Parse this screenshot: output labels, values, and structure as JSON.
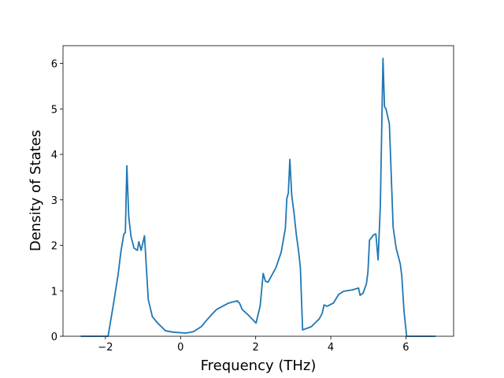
{
  "chart_data": {
    "type": "line",
    "xlabel": "Frequency (THz)",
    "ylabel": "Density of States",
    "color": "#1f77b4",
    "x": [
      -2.66,
      -1.93,
      -1.8,
      -1.66,
      -1.59,
      -1.51,
      -1.47,
      -1.43,
      -1.38,
      -1.32,
      -1.24,
      -1.15,
      -1.11,
      -1.05,
      -0.96,
      -0.86,
      -0.75,
      -0.61,
      -0.4,
      -0.19,
      0.13,
      0.34,
      0.55,
      0.69,
      0.82,
      0.96,
      1.28,
      1.51,
      1.57,
      1.64,
      1.8,
      2.01,
      2.12,
      2.2,
      2.26,
      2.33,
      2.54,
      2.68,
      2.79,
      2.83,
      2.87,
      2.91,
      2.96,
      3.02,
      3.08,
      3.14,
      3.19,
      3.25,
      3.48,
      3.69,
      3.77,
      3.82,
      3.9,
      4.07,
      4.21,
      4.34,
      4.57,
      4.74,
      4.78,
      4.86,
      4.95,
      4.99,
      5.03,
      5.14,
      5.2,
      5.26,
      5.32,
      5.39,
      5.43,
      5.47,
      5.56,
      5.66,
      5.74,
      5.85,
      5.89,
      5.95,
      6.02,
      6.79
    ],
    "values": [
      0,
      0,
      0.64,
      1.37,
      1.85,
      2.25,
      2.28,
      3.75,
      2.63,
      2.2,
      1.94,
      1.89,
      2.08,
      1.89,
      2.21,
      0.81,
      0.43,
      0.29,
      0.12,
      0.09,
      0.07,
      0.1,
      0.21,
      0.35,
      0.47,
      0.59,
      0.73,
      0.78,
      0.73,
      0.59,
      0.47,
      0.29,
      0.67,
      1.38,
      1.21,
      1.19,
      1.51,
      1.85,
      2.37,
      3.03,
      3.15,
      3.89,
      3.1,
      2.72,
      2.25,
      1.89,
      1.51,
      0.14,
      0.21,
      0.38,
      0.5,
      0.69,
      0.66,
      0.73,
      0.92,
      0.99,
      1.02,
      1.06,
      0.9,
      0.95,
      1.16,
      1.42,
      2.11,
      2.23,
      2.25,
      1.68,
      2.89,
      6.11,
      5.05,
      5.0,
      4.67,
      2.4,
      1.94,
      1.59,
      1.33,
      0.55,
      0,
      0
    ],
    "xlim": [
      -3.13,
      7.27
    ],
    "ylim": [
      0,
      6.39
    ],
    "xticks": [
      {
        "value": -2,
        "label": "−2"
      },
      0,
      2,
      4,
      6
    ],
    "yticks": [
      0,
      1,
      2,
      3,
      4,
      5,
      6
    ]
  }
}
